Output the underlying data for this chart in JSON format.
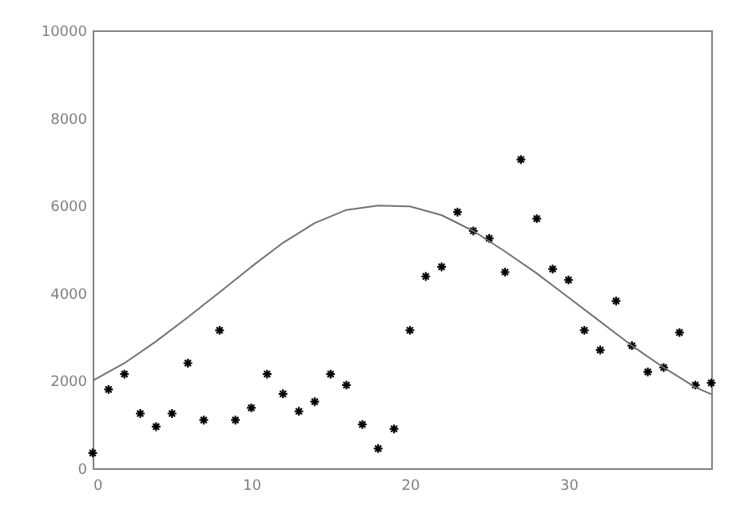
{
  "chart_data": {
    "type": "scatter",
    "xlim": [
      0,
      39
    ],
    "ylim": [
      0,
      10000
    ],
    "xticks": [
      0,
      10,
      20,
      30
    ],
    "yticks": [
      0,
      2000,
      4000,
      6000,
      8000,
      10000
    ],
    "grid": false,
    "series": [
      {
        "color": "#000000",
        "marker": "cross",
        "x": [
          0,
          1,
          2,
          3,
          4,
          5,
          6,
          7,
          8,
          9,
          10,
          11,
          12,
          13,
          14,
          15,
          16,
          17,
          18,
          19,
          20,
          21,
          22,
          23,
          24,
          25,
          26,
          27,
          28,
          29,
          30,
          31,
          32,
          33,
          34,
          35,
          36,
          37,
          38,
          39
        ],
        "values": [
          350,
          1800,
          2150,
          1250,
          950,
          1250,
          2400,
          1100,
          3150,
          1100,
          1380,
          2150,
          1700,
          1300,
          1520,
          2150,
          1900,
          1000,
          450,
          900,
          3150,
          4380,
          4600,
          5850,
          5420,
          5250,
          4480,
          7050,
          5700,
          4550,
          4300,
          3150,
          2700,
          3820,
          2800,
          2200,
          2300,
          3100,
          1900,
          1950
        ]
      },
      {
        "type": "line",
        "color": "#707070",
        "x": [
          0,
          2,
          4,
          6,
          8,
          10,
          12,
          14,
          16,
          18,
          20,
          22,
          24,
          26,
          28,
          30,
          32,
          34,
          36,
          38,
          39
        ],
        "values": [
          2000,
          2400,
          2900,
          3450,
          4020,
          4600,
          5150,
          5600,
          5900,
          6000,
          5980,
          5780,
          5420,
          4950,
          4450,
          3900,
          3350,
          2800,
          2300,
          1850,
          1690
        ]
      }
    ]
  }
}
